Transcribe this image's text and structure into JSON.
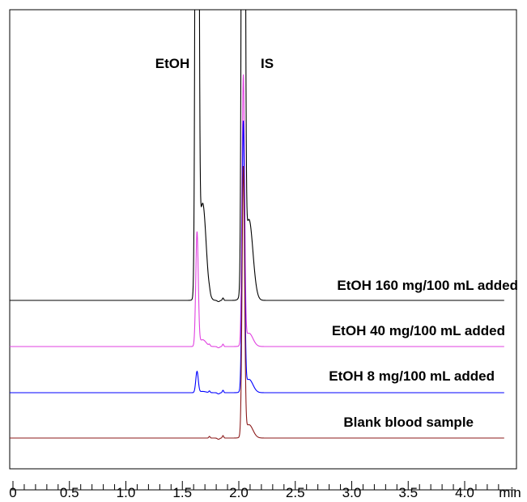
{
  "chart_data": {
    "type": "line",
    "title": "",
    "xlabel": "",
    "ylabel": "",
    "x_unit": "min",
    "xlim": [
      0,
      4.3
    ],
    "x_ticks": [
      {
        "value": 0,
        "label": "0"
      },
      {
        "value": 0.5,
        "label": "0.5"
      },
      {
        "value": 1.0,
        "label": "1.0"
      },
      {
        "value": 1.5,
        "label": "1.5"
      },
      {
        "value": 2.0,
        "label": "2.0"
      },
      {
        "value": 2.5,
        "label": "2.5"
      },
      {
        "value": 3.0,
        "label": "3.0"
      },
      {
        "value": 3.5,
        "label": "3.5"
      },
      {
        "value": 4.0,
        "label": "4.0"
      }
    ],
    "minor_tick_step": 0.1,
    "grid": false,
    "legend": "inline labels above each trace",
    "peaks": [
      {
        "name": "EtOH",
        "x": 1.63
      },
      {
        "name": "IS",
        "x": 2.04
      }
    ],
    "series": [
      {
        "name": "EtOH 160 mg/100 mL added",
        "color": "#000000",
        "etoh_peak": 1.0,
        "is_peak": 1.0
      },
      {
        "name": "EtOH 40 mg/100 mL added",
        "color": "#e040e0",
        "etoh_peak": 0.39,
        "is_peak": 1.0
      },
      {
        "name": "EtOH 8 mg/100 mL added",
        "color": "#0000ff",
        "etoh_peak": 0.07,
        "is_peak": 1.0
      },
      {
        "name": "Blank blood sample",
        "color": "#8b1a1a",
        "etoh_peak": 0.0,
        "is_peak": 1.0
      }
    ]
  }
}
